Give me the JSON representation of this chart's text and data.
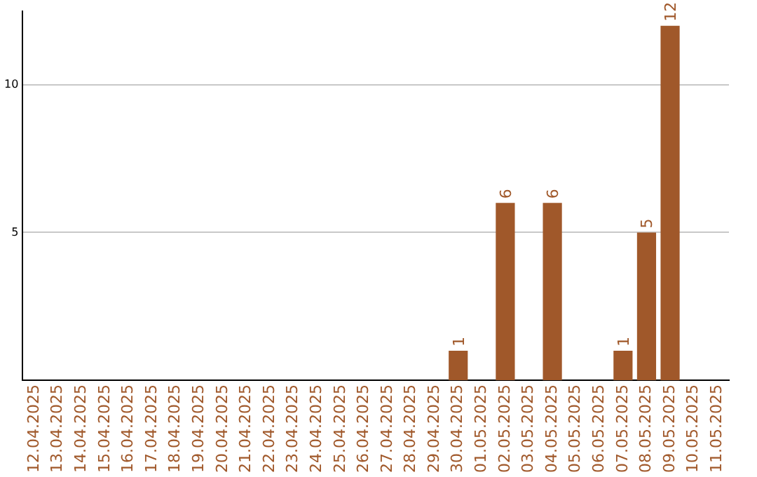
{
  "chart_data": {
    "type": "bar",
    "categories": [
      "12.04.2025",
      "13.04.2025",
      "14.04.2025",
      "15.04.2025",
      "16.04.2025",
      "17.04.2025",
      "18.04.2025",
      "19.04.2025",
      "20.04.2025",
      "21.04.2025",
      "22.04.2025",
      "23.04.2025",
      "24.04.2025",
      "25.04.2025",
      "26.04.2025",
      "27.04.2025",
      "28.04.2025",
      "29.04.2025",
      "30.04.2025",
      "01.05.2025",
      "02.05.2025",
      "03.05.2025",
      "04.05.2025",
      "05.05.2025",
      "06.05.2025",
      "07.05.2025",
      "08.05.2025",
      "09.05.2025",
      "10.05.2025",
      "11.05.2025"
    ],
    "values": [
      0,
      0,
      0,
      0,
      0,
      0,
      0,
      0,
      0,
      0,
      0,
      0,
      0,
      0,
      0,
      0,
      0,
      0,
      1,
      0,
      6,
      0,
      6,
      0,
      0,
      1,
      5,
      12,
      0,
      0
    ],
    "value_labels": [
      null,
      null,
      null,
      null,
      null,
      null,
      null,
      null,
      null,
      null,
      null,
      null,
      null,
      null,
      null,
      null,
      null,
      null,
      "1",
      null,
      "6",
      null,
      "6",
      null,
      null,
      "1",
      "5",
      "12",
      null,
      null
    ],
    "color": "#a0582a",
    "ylim": [
      0,
      12.5
    ],
    "yticks": [
      5,
      10
    ],
    "grid": "y",
    "legend": false
  }
}
